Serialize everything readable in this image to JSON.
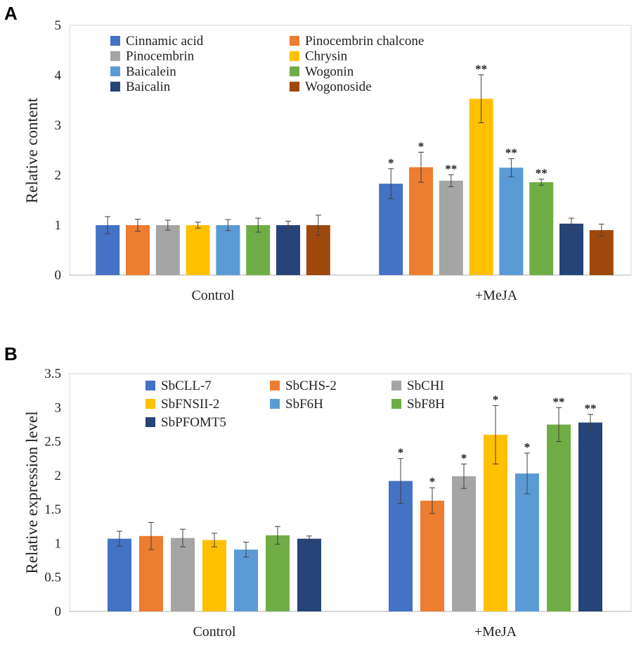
{
  "chart_data": [
    {
      "panel": "A",
      "type": "bar",
      "ylabel": "Relative content",
      "ylim": [
        0,
        5
      ],
      "yticks": [
        "0",
        "1",
        "2",
        "3",
        "4",
        "5"
      ],
      "categories": [
        "Control",
        "+MeJA"
      ],
      "series": [
        {
          "name": "Cinnamic acid",
          "color": "#4472C4",
          "values": [
            1.0,
            1.83
          ],
          "errors": [
            0.17,
            0.3
          ],
          "sig": [
            "",
            "*"
          ]
        },
        {
          "name": "Pinocembrin chalcone",
          "color": "#ED7D31",
          "values": [
            1.0,
            2.16
          ],
          "errors": [
            0.12,
            0.3
          ],
          "sig": [
            "",
            "*"
          ]
        },
        {
          "name": "Pinocembrin",
          "color": "#A5A5A5",
          "values": [
            1.0,
            1.89
          ],
          "errors": [
            0.1,
            0.12
          ],
          "sig": [
            "",
            "**"
          ]
        },
        {
          "name": "Chrysin",
          "color": "#FFC000",
          "values": [
            1.0,
            3.53
          ],
          "errors": [
            0.06,
            0.48
          ],
          "sig": [
            "",
            "**"
          ]
        },
        {
          "name": "Baicalein",
          "color": "#5B9BD5",
          "values": [
            1.0,
            2.15
          ],
          "errors": [
            0.11,
            0.18
          ],
          "sig": [
            "",
            "**"
          ]
        },
        {
          "name": "Wogonin",
          "color": "#70AD47",
          "values": [
            1.0,
            1.86
          ],
          "errors": [
            0.14,
            0.06
          ],
          "sig": [
            "",
            "**"
          ]
        },
        {
          "name": "Baicalin",
          "color": "#264478",
          "values": [
            1.0,
            1.03
          ],
          "errors": [
            0.08,
            0.11
          ],
          "sig": [
            "",
            ""
          ]
        },
        {
          "name": "Wogonoside",
          "color": "#9E480E",
          "values": [
            1.0,
            0.9
          ],
          "errors": [
            0.2,
            0.12
          ],
          "sig": [
            "",
            ""
          ]
        }
      ]
    },
    {
      "panel": "B",
      "type": "bar",
      "ylabel": "Relative expression level",
      "ylim": [
        0,
        3.5
      ],
      "yticks": [
        "0",
        "0.5",
        "1",
        "1.5",
        "2",
        "2.5",
        "3",
        "3.5"
      ],
      "categories": [
        "Control",
        "+MeJA"
      ],
      "series": [
        {
          "name": "SbCLL-7",
          "color": "#4472C4",
          "values": [
            1.07,
            1.92
          ],
          "errors": [
            0.11,
            0.33
          ],
          "sig": [
            "",
            "*"
          ]
        },
        {
          "name": "SbCHS-2",
          "color": "#ED7D31",
          "values": [
            1.11,
            1.63
          ],
          "errors": [
            0.2,
            0.19
          ],
          "sig": [
            "",
            "*"
          ]
        },
        {
          "name": "SbCHI",
          "color": "#A5A5A5",
          "values": [
            1.08,
            1.99
          ],
          "errors": [
            0.13,
            0.18
          ],
          "sig": [
            "",
            "*"
          ]
        },
        {
          "name": "SbFNSII-2",
          "color": "#FFC000",
          "values": [
            1.05,
            2.6
          ],
          "errors": [
            0.1,
            0.43
          ],
          "sig": [
            "",
            "*"
          ]
        },
        {
          "name": "SbF6H",
          "color": "#5B9BD5",
          "values": [
            0.91,
            2.03
          ],
          "errors": [
            0.11,
            0.3
          ],
          "sig": [
            "",
            "*"
          ]
        },
        {
          "name": "SbF8H",
          "color": "#70AD47",
          "values": [
            1.12,
            2.75
          ],
          "errors": [
            0.13,
            0.25
          ],
          "sig": [
            "",
            "**"
          ]
        },
        {
          "name": "SbPFOMT5",
          "color": "#264478",
          "values": [
            1.07,
            2.78
          ],
          "errors": [
            0.04,
            0.12
          ],
          "sig": [
            "",
            "**"
          ]
        }
      ]
    }
  ]
}
